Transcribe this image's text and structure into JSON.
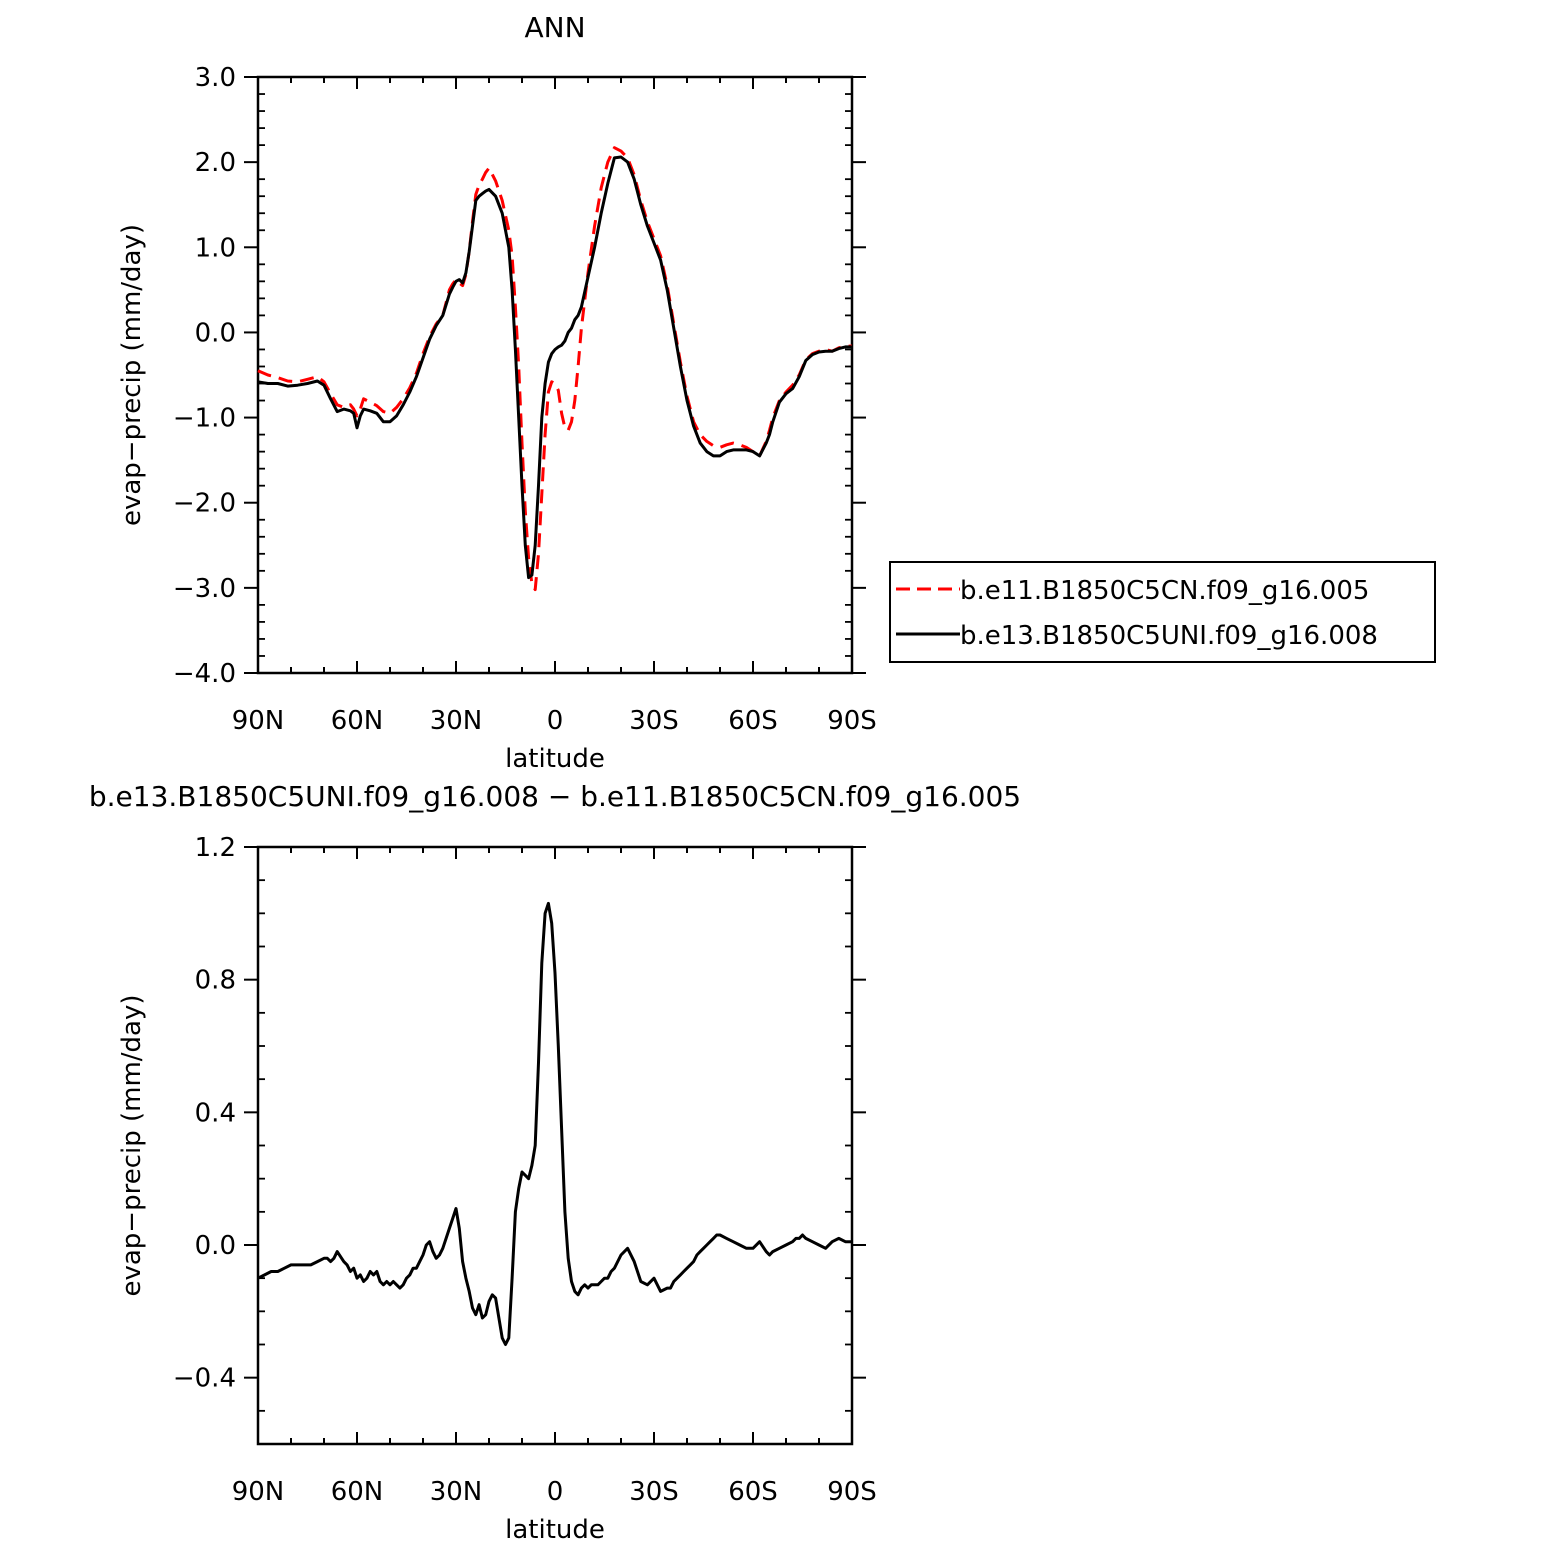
{
  "chart_data": [
    {
      "type": "line",
      "title": "ANN",
      "xlabel": "latitude",
      "ylabel": "evap−precip (mm/day)",
      "xlim": [
        90,
        -90
      ],
      "ylim": [
        -4.0,
        3.0
      ],
      "x_ticks": [
        {
          "value": 90,
          "label": "90N"
        },
        {
          "value": 60,
          "label": "60N"
        },
        {
          "value": 30,
          "label": "30N"
        },
        {
          "value": 0,
          "label": "0"
        },
        {
          "value": -30,
          "label": "30S"
        },
        {
          "value": -60,
          "label": "60S"
        },
        {
          "value": -90,
          "label": "90S"
        }
      ],
      "y_ticks": [
        {
          "value": 3.0,
          "label": "3.0"
        },
        {
          "value": 2.0,
          "label": "2.0"
        },
        {
          "value": 1.0,
          "label": "1.0"
        },
        {
          "value": 0.0,
          "label": "0.0"
        },
        {
          "value": -1.0,
          "label": "−1.0"
        },
        {
          "value": -2.0,
          "label": "−2.0"
        },
        {
          "value": -3.0,
          "label": "−3.0"
        },
        {
          "value": -4.0,
          "label": "−4.0"
        }
      ],
      "legend_position": "right",
      "series": [
        {
          "name": "b.e11.B1850C5CN.f09_g16.005",
          "color": "#ff0000",
          "dash": "dashed",
          "x": [
            90,
            87,
            84,
            81,
            78,
            75,
            72,
            70,
            68,
            66,
            64,
            62,
            61,
            60,
            59,
            58,
            56,
            54,
            52,
            50,
            48,
            46,
            44,
            42,
            40,
            38,
            36,
            34,
            32,
            31,
            30,
            29,
            28,
            27,
            26,
            25,
            24,
            23,
            22,
            21,
            20,
            18,
            16,
            14,
            13,
            12,
            11,
            10,
            9,
            8,
            7,
            6,
            5,
            4,
            3,
            2,
            1,
            0,
            -1,
            -2,
            -3,
            -4,
            -5,
            -6,
            -7,
            -8,
            -10,
            -12,
            -14,
            -16,
            -18,
            -20,
            -22,
            -24,
            -26,
            -28,
            -30,
            -32,
            -34,
            -36,
            -38,
            -40,
            -42,
            -44,
            -46,
            -48,
            -50,
            -52,
            -54,
            -56,
            -58,
            -60,
            -62,
            -64,
            -65,
            -66,
            -68,
            -70,
            -72,
            -74,
            -76,
            -78,
            -80,
            -82,
            -84,
            -86,
            -88,
            -90
          ],
          "y": [
            -0.45,
            -0.5,
            -0.53,
            -0.57,
            -0.58,
            -0.55,
            -0.52,
            -0.58,
            -0.72,
            -0.85,
            -0.88,
            -0.85,
            -0.9,
            -0.98,
            -0.9,
            -0.78,
            -0.82,
            -0.86,
            -0.93,
            -0.95,
            -0.88,
            -0.78,
            -0.65,
            -0.48,
            -0.25,
            -0.05,
            0.1,
            0.2,
            0.5,
            0.57,
            0.62,
            0.58,
            0.55,
            0.68,
            0.95,
            1.3,
            1.62,
            1.73,
            1.8,
            1.88,
            1.93,
            1.78,
            1.55,
            1.2,
            0.9,
            0.3,
            -0.4,
            -1.3,
            -2.1,
            -2.65,
            -2.95,
            -3.02,
            -2.6,
            -1.9,
            -1.2,
            -0.7,
            -0.58,
            -0.6,
            -0.68,
            -0.95,
            -1.12,
            -1.15,
            -1.05,
            -0.8,
            -0.4,
            0.05,
            0.7,
            1.25,
            1.7,
            2.0,
            2.17,
            2.13,
            2.05,
            1.85,
            1.55,
            1.3,
            1.1,
            0.9,
            0.55,
            0.1,
            -0.35,
            -0.75,
            -1.05,
            -1.2,
            -1.28,
            -1.33,
            -1.35,
            -1.32,
            -1.3,
            -1.32,
            -1.35,
            -1.4,
            -1.45,
            -1.28,
            -1.15,
            -1.0,
            -0.8,
            -0.7,
            -0.62,
            -0.5,
            -0.32,
            -0.25,
            -0.22,
            -0.2,
            -0.22,
            -0.18,
            -0.16,
            -0.16
          ]
        },
        {
          "name": "b.e13.B1850C5UNI.f09_g16.008",
          "color": "#000000",
          "dash": "solid",
          "x": [
            90,
            87,
            84,
            81,
            78,
            75,
            72,
            70,
            68,
            66,
            64,
            62,
            61,
            60,
            59,
            58,
            56,
            54,
            52,
            50,
            48,
            46,
            44,
            42,
            40,
            38,
            36,
            34,
            32,
            31,
            30,
            29,
            28,
            27,
            26,
            25,
            24,
            23,
            22,
            21,
            20,
            18,
            16,
            14,
            13,
            12,
            11,
            10,
            9,
            8,
            7,
            6,
            5,
            4,
            3,
            2,
            1,
            0,
            -1,
            -2,
            -3,
            -4,
            -5,
            -6,
            -7,
            -8,
            -10,
            -12,
            -14,
            -16,
            -18,
            -20,
            -22,
            -24,
            -26,
            -28,
            -30,
            -32,
            -34,
            -36,
            -38,
            -40,
            -42,
            -44,
            -46,
            -48,
            -50,
            -52,
            -54,
            -56,
            -58,
            -60,
            -62,
            -64,
            -65,
            -66,
            -68,
            -70,
            -72,
            -74,
            -76,
            -78,
            -80,
            -82,
            -84,
            -86,
            -88,
            -90
          ],
          "y": [
            -0.58,
            -0.6,
            -0.6,
            -0.63,
            -0.62,
            -0.6,
            -0.57,
            -0.62,
            -0.78,
            -0.93,
            -0.9,
            -0.92,
            -0.95,
            -1.12,
            -0.98,
            -0.9,
            -0.92,
            -0.95,
            -1.05,
            -1.05,
            -0.98,
            -0.85,
            -0.7,
            -0.52,
            -0.3,
            -0.08,
            0.08,
            0.2,
            0.45,
            0.53,
            0.6,
            0.62,
            0.58,
            0.7,
            0.95,
            1.25,
            1.55,
            1.6,
            1.63,
            1.66,
            1.68,
            1.6,
            1.4,
            1.0,
            0.5,
            -0.2,
            -1.0,
            -1.8,
            -2.5,
            -2.88,
            -2.85,
            -2.5,
            -1.8,
            -1.0,
            -0.6,
            -0.35,
            -0.25,
            -0.2,
            -0.17,
            -0.15,
            -0.1,
            0.0,
            0.05,
            0.15,
            0.2,
            0.3,
            0.65,
            1.0,
            1.4,
            1.75,
            2.05,
            2.06,
            2.0,
            1.8,
            1.5,
            1.25,
            1.05,
            0.85,
            0.5,
            0.05,
            -0.4,
            -0.8,
            -1.1,
            -1.3,
            -1.4,
            -1.45,
            -1.45,
            -1.4,
            -1.38,
            -1.38,
            -1.38,
            -1.4,
            -1.45,
            -1.3,
            -1.2,
            -1.05,
            -0.82,
            -0.72,
            -0.66,
            -0.52,
            -0.33,
            -0.26,
            -0.23,
            -0.22,
            -0.22,
            -0.19,
            -0.17,
            -0.17
          ]
        }
      ]
    },
    {
      "type": "line",
      "title": "b.e13.B1850C5UNI.f09_g16.008 − b.e11.B1850C5CN.f09_g16.005",
      "xlabel": "latitude",
      "ylabel": "evap−precip (mm/day)",
      "xlim": [
        90,
        -90
      ],
      "ylim": [
        -0.6,
        1.2
      ],
      "x_ticks": [
        {
          "value": 90,
          "label": "90N"
        },
        {
          "value": 60,
          "label": "60N"
        },
        {
          "value": 30,
          "label": "30N"
        },
        {
          "value": 0,
          "label": "0"
        },
        {
          "value": -30,
          "label": "30S"
        },
        {
          "value": -60,
          "label": "60S"
        },
        {
          "value": -90,
          "label": "90S"
        }
      ],
      "y_ticks": [
        {
          "value": 1.2,
          "label": "1.2"
        },
        {
          "value": 0.8,
          "label": "0.8"
        },
        {
          "value": 0.4,
          "label": "0.4"
        },
        {
          "value": 0.0,
          "label": "0.0"
        },
        {
          "value": -0.4,
          "label": "−0.4"
        }
      ],
      "series": [
        {
          "color": "#000000",
          "dash": "solid",
          "x": [
            90,
            88,
            86,
            84,
            82,
            80,
            78,
            76,
            74,
            72,
            70,
            69,
            68,
            67,
            66,
            64,
            63,
            62,
            61,
            60,
            59,
            58,
            57,
            56,
            55,
            54,
            53,
            52,
            51,
            50,
            49,
            48,
            47,
            46,
            45,
            44,
            43,
            42,
            41,
            40,
            39,
            38,
            37,
            36,
            35,
            34,
            33,
            32,
            31,
            30,
            29,
            28,
            27,
            26,
            25,
            24,
            23,
            22,
            21,
            20,
            19,
            18,
            17,
            16,
            15,
            14,
            13,
            12,
            11,
            10,
            9,
            8,
            7,
            6,
            5,
            4,
            3,
            2,
            1,
            0,
            -1,
            -2,
            -3,
            -4,
            -5,
            -6,
            -7,
            -8,
            -9,
            -10,
            -11,
            -12,
            -13,
            -14,
            -15,
            -16,
            -17,
            -18,
            -20,
            -22,
            -24,
            -26,
            -28,
            -30,
            -32,
            -34,
            -35,
            -36,
            -37,
            -38,
            -39,
            -40,
            -41,
            -42,
            -43,
            -44,
            -45,
            -46,
            -47,
            -48,
            -49,
            -50,
            -52,
            -54,
            -56,
            -58,
            -60,
            -62,
            -64,
            -65,
            -66,
            -68,
            -70,
            -72,
            -73,
            -74,
            -75,
            -76,
            -78,
            -80,
            -82,
            -84,
            -86,
            -88,
            -90
          ],
          "y": [
            -0.1,
            -0.09,
            -0.08,
            -0.08,
            -0.07,
            -0.06,
            -0.06,
            -0.06,
            -0.06,
            -0.05,
            -0.04,
            -0.04,
            -0.05,
            -0.04,
            -0.02,
            -0.05,
            -0.06,
            -0.08,
            -0.07,
            -0.1,
            -0.09,
            -0.11,
            -0.1,
            -0.08,
            -0.09,
            -0.08,
            -0.11,
            -0.12,
            -0.11,
            -0.12,
            -0.11,
            -0.12,
            -0.13,
            -0.12,
            -0.1,
            -0.09,
            -0.07,
            -0.07,
            -0.05,
            -0.03,
            0.0,
            0.01,
            -0.02,
            -0.04,
            -0.03,
            -0.01,
            0.02,
            0.05,
            0.08,
            0.11,
            0.05,
            -0.05,
            -0.1,
            -0.14,
            -0.19,
            -0.21,
            -0.18,
            -0.22,
            -0.21,
            -0.17,
            -0.15,
            -0.16,
            -0.22,
            -0.28,
            -0.3,
            -0.28,
            -0.1,
            0.1,
            0.17,
            0.22,
            0.21,
            0.2,
            0.24,
            0.3,
            0.55,
            0.85,
            1.0,
            1.03,
            0.97,
            0.82,
            0.6,
            0.35,
            0.1,
            -0.04,
            -0.11,
            -0.14,
            -0.15,
            -0.13,
            -0.12,
            -0.13,
            -0.12,
            -0.12,
            -0.12,
            -0.11,
            -0.1,
            -0.1,
            -0.08,
            -0.07,
            -0.03,
            -0.01,
            -0.05,
            -0.11,
            -0.12,
            -0.1,
            -0.14,
            -0.13,
            -0.13,
            -0.11,
            -0.1,
            -0.09,
            -0.08,
            -0.07,
            -0.06,
            -0.05,
            -0.03,
            -0.02,
            -0.01,
            0.0,
            0.01,
            0.02,
            0.03,
            0.03,
            0.02,
            0.01,
            0.0,
            -0.01,
            -0.01,
            0.01,
            -0.02,
            -0.03,
            -0.02,
            -0.01,
            0.0,
            0.01,
            0.02,
            0.02,
            0.03,
            0.02,
            0.01,
            0.0,
            -0.01,
            0.01,
            0.02,
            0.01,
            0.01
          ]
        }
      ]
    }
  ]
}
